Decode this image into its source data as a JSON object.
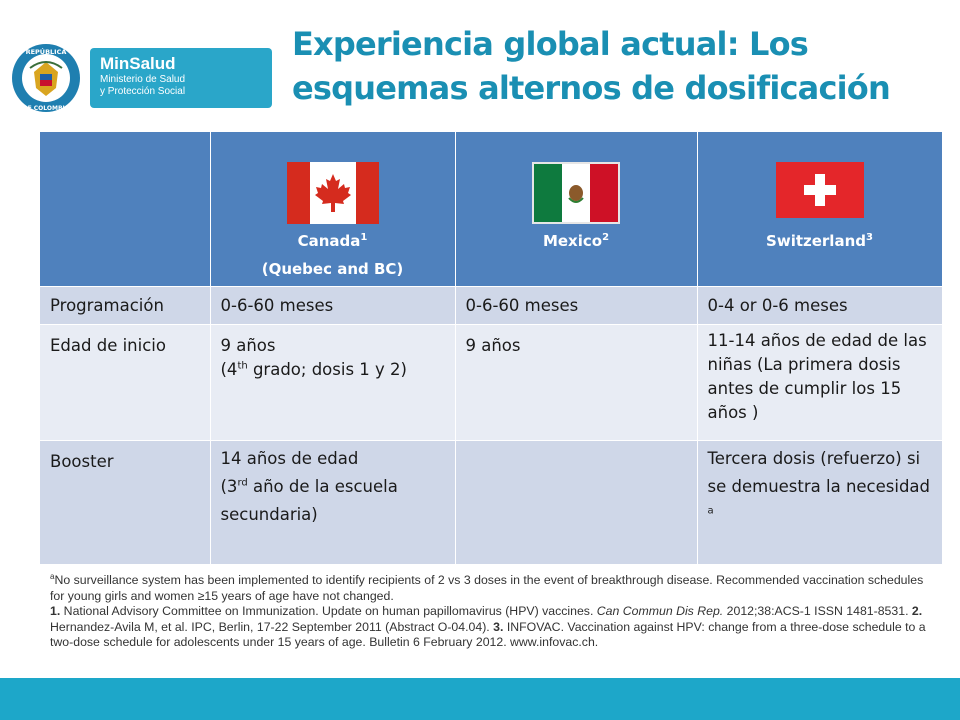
{
  "logo": {
    "seal_text_top": "REPÚBLICA",
    "seal_text_bottom": "DE COLOMBIA",
    "brand": "MinSalud",
    "sub_line1": "Ministerio de Salud",
    "sub_line2": "y Protección Social",
    "brand_color": "#2aa6c9"
  },
  "title": {
    "line1": "Experiencia global actual: Los",
    "line2": "esquemas alternos de dosificación",
    "color": "#1a8fb3"
  },
  "table": {
    "header_color": "#4f81bd",
    "columns": [
      {
        "country": "Canada",
        "sup": "1",
        "sub": "(Quebec and BC)",
        "flag": "canada-flag"
      },
      {
        "country": "Mexico",
        "sup": "2",
        "sub": "",
        "flag": "mexico-flag"
      },
      {
        "country": "Switzerland",
        "sup": "3",
        "sub": "",
        "flag": "switzerland-flag"
      }
    ],
    "rows": [
      {
        "label": "Programación",
        "canada": "0-6-60 meses",
        "mexico": "0-6-60 meses",
        "switzerland": "0-4 or 0-6 meses"
      },
      {
        "label": "Edad de inicio",
        "canada_l1": "9 años",
        "canada_l2_pre": "(4",
        "canada_l2_sup": "th",
        "canada_l2_post": " grado; dosis 1 y 2)",
        "mexico": "9 años",
        "switzerland": "11-14 años de edad de las niñas (La primera dosis antes de cumplir los 15 años )"
      },
      {
        "label": "Booster",
        "canada_l1": "14 años de edad",
        "canada_l2_pre": "(3",
        "canada_l2_sup": "rd",
        "canada_l2_post": " año de la escuela secundaria)",
        "mexico": "",
        "switzerland": "Tercera dosis (refuerzo) si se demuestra la necesidad",
        "switzerland_sup": "a"
      }
    ]
  },
  "footnotes": {
    "a_mark": "a",
    "a_text": "No surveillance system has been implemented to identify recipients of 2 vs 3 doses in the event of breakthrough disease. Recommended vaccination schedules for young girls and women ≥15 years of age have not changed.",
    "ref1_num": "1.",
    "ref1_text": " National Advisory Committee on Immunization. Update on human papillomavirus (HPV) vaccines. ",
    "ref1_journal": "Can Commun Dis Rep.",
    "ref1_rest": " 2012;38:ACS-1 ISSN 1481-8531. ",
    "ref2_num": "2.",
    "ref2_text": " Hernandez-Avila M, et al. IPC, Berlin, 17-22 September 2011 (Abstract O-04.04). ",
    "ref3_num": "3.",
    "ref3_text": " INFOVAC. Vaccination against HPV: change from a three-dose schedule to a two-dose schedule for adolescents under 15 years of age. Bulletin 6 February 2012. www.infovac.ch."
  },
  "bottom_bar_color": "#1da7c9"
}
